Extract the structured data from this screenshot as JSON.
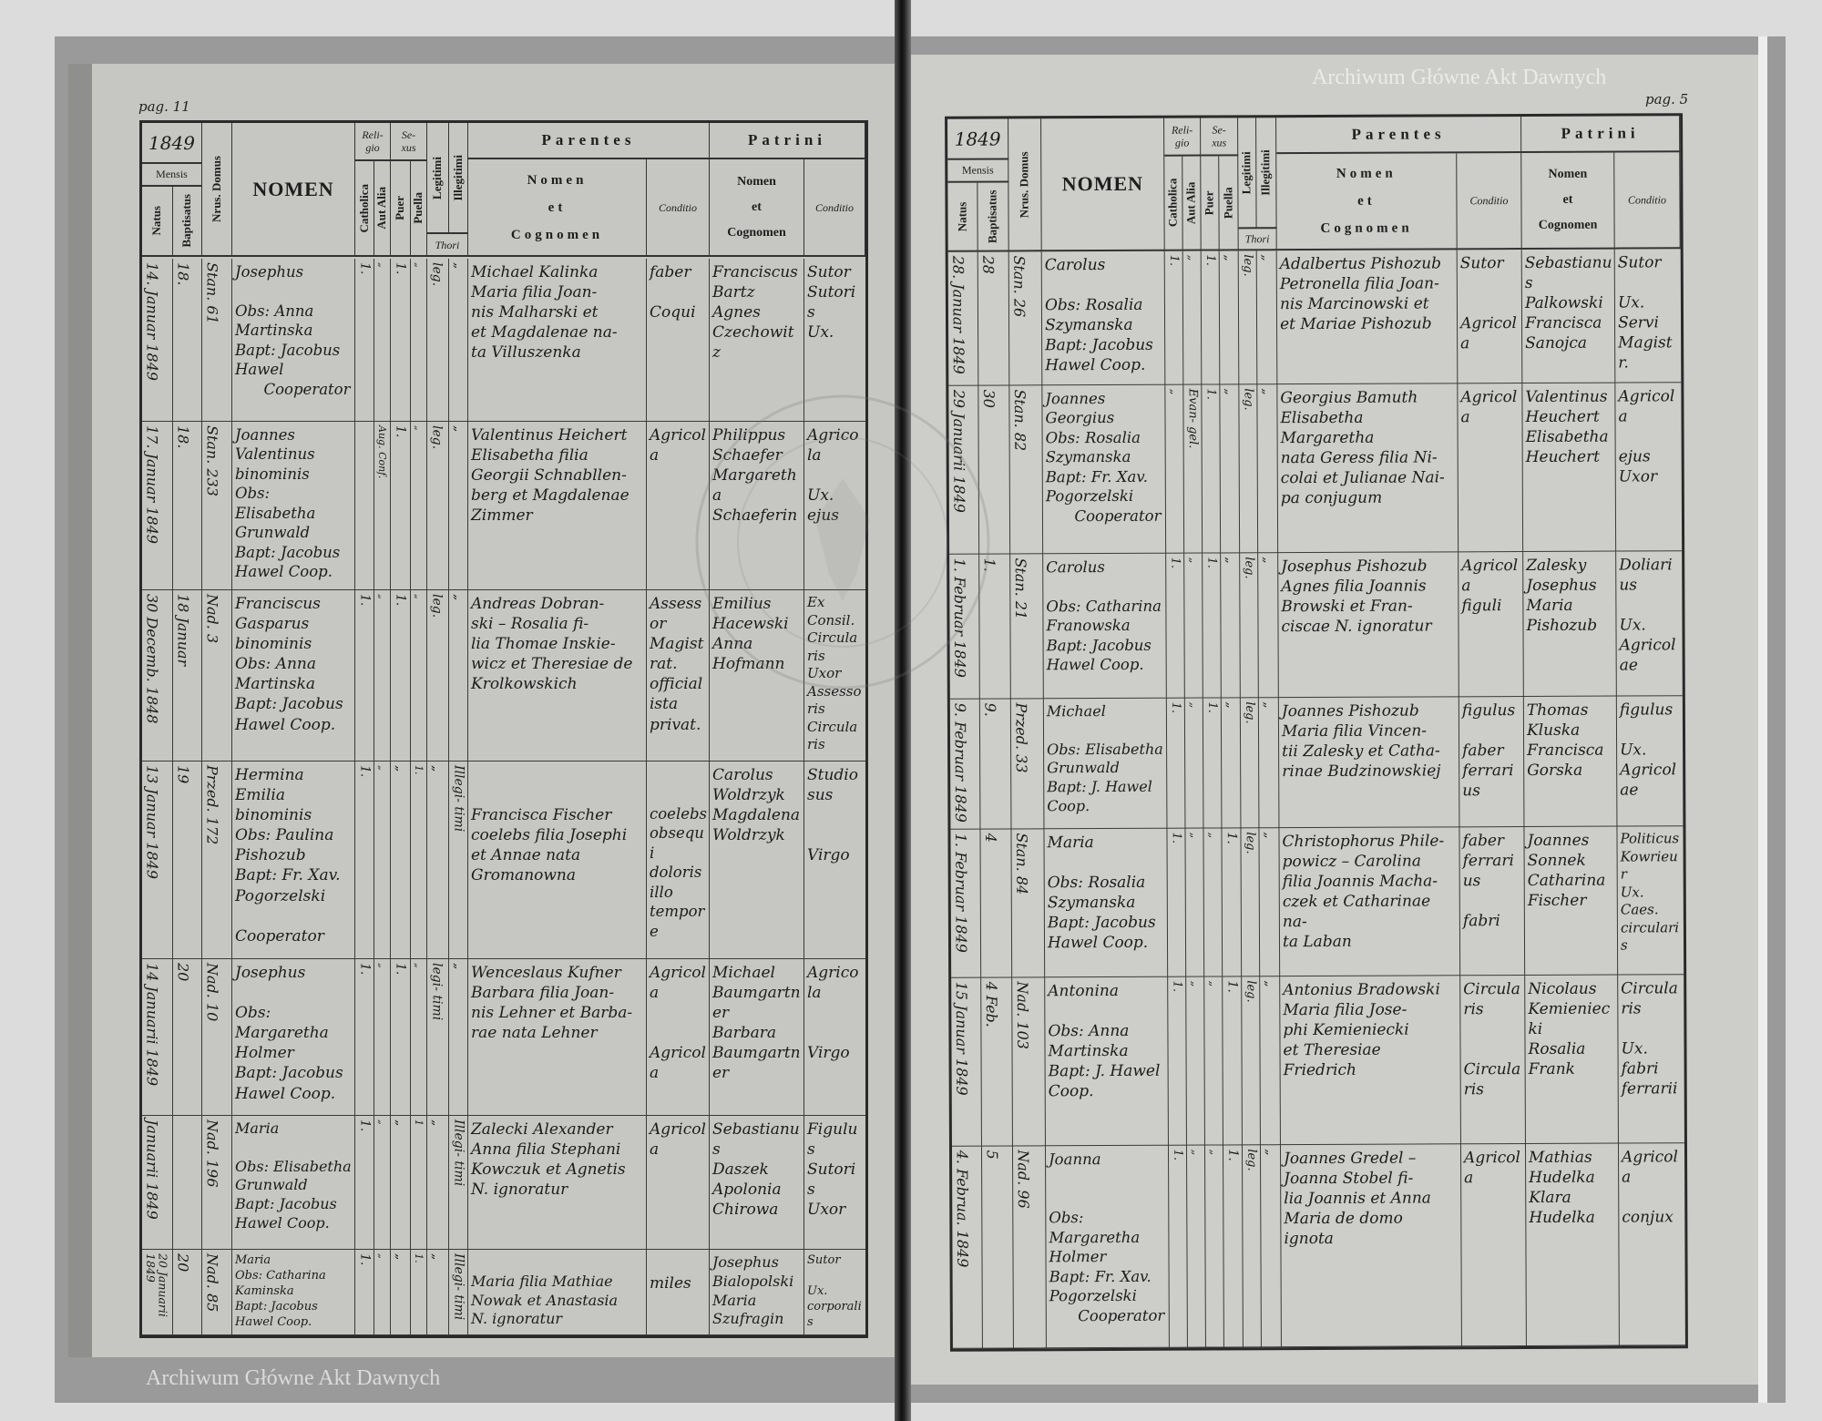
{
  "header": {
    "mensis": "Mensis",
    "natus": "Natus",
    "baptisatus": "Baptisatus",
    "domus": "Nrus. Domus",
    "nomen": "NOMEN",
    "religio": "Reli-\ngio",
    "catholica": "Catholica",
    "aut_alia": "Aut Alia",
    "sexus": "Se-\nxus",
    "puer": "Puer",
    "puella": "Puella",
    "legitimi": "Legitimi",
    "illegitimi": "Illegitimi",
    "thori": "Thori",
    "parentes": "Parentes",
    "parentes_nomen": "Nomen\net\nCognomen",
    "conditio": "Conditio",
    "patrini": "Patrini",
    "patrini_nomen": "Nomen\net\nCognomen"
  },
  "watermark": "Archiwum Główne Akt Dawnych",
  "seal": "ARCHIWUM GŁÓWNE\nAKT DAWNYCH",
  "pages": [
    {
      "page_label": "pag. 11",
      "year": "1849",
      "entries": [
        {
          "natus": "14.\nJanuar\n1849",
          "baptisatus": "18.",
          "domus": "Stan.\n61",
          "nomen": "Josephus\n\nObs: Anna Martinska\nBapt: Jacobus Hawel\n      Cooperator",
          "catholica": "1.",
          "aut_alia": "„",
          "puer": "1.",
          "puella": "„",
          "legitimi": "leg.",
          "illegitimi": "„",
          "parentes_nomen": "Michael Kalinka\nMaria filia Joan-\nnis Malharski et\net Magdalenae na-\nta Villuszenka",
          "parentes_conditio": "faber\n\nCoqui",
          "patrini_nomen": "Franciscus\nBartz\nAgnes\nCzechowitz",
          "patrini_conditio": "Sutor\nSutoris\nUx."
        },
        {
          "natus": "17.\nJanuar\n1849",
          "baptisatus": "18.",
          "domus": "Stan.\n233",
          "nomen": "Joannes\nValentinus\nbinominis\nObs: Elisabetha Grunwald\nBapt: Jacobus Hawel Coop.",
          "catholica": "",
          "aut_alia": "Aug.\nConf.",
          "puer": "1.",
          "puella": "„",
          "legitimi": "leg.",
          "illegitimi": "„",
          "parentes_nomen": "Valentinus Heichert\nElisabetha filia\nGeorgii Schnabllen-\nberg et Magdalenae\nZimmer",
          "parentes_conditio": "Agricola",
          "patrini_nomen": "Philippus\nSchaefer\nMargaretha\nSchaeferin",
          "patrini_conditio": "Agricola\n\nUx.\nejus"
        },
        {
          "natus": "30\nDecemb.\n1848",
          "baptisatus": "18\nJanuar",
          "domus": "Nad.\n3",
          "nomen": "Franciscus\nGasparus\nbinominis\nObs: Anna Martinska\nBapt: Jacobus Hawel Coop.",
          "catholica": "1.",
          "aut_alia": "„",
          "puer": "1.",
          "puella": "„",
          "legitimi": "leg.",
          "illegitimi": "„",
          "parentes_nomen": "Andreas Dobran-\nski – Rosalia fi-\nlia Thomae Inskie-\nwicz et Theresiae de\nKrolkowskich",
          "parentes_conditio": "Assessor\nMagistrat.\nofficialista\nprivat.",
          "patrini_nomen": "Emilius\nHacewski\nAnna\nHofmann",
          "patrini_conditio": "Ex Consil.\nCircularis\nUxor\nAssessoris\nCircularis"
        },
        {
          "natus": "13\nJanuar\n1849",
          "baptisatus": "19",
          "domus": "Przed.\n172",
          "nomen": "Hermina\nEmilia\nbinominis\nObs: Paulina Pishozub\nBapt: Fr. Xav. Pogorzelski\n      Cooperator",
          "catholica": "1.",
          "aut_alia": "„",
          "puer": "„",
          "puella": "1.",
          "legitimi": "„",
          "illegitimi": "Illegi-\ntimi",
          "parentes_nomen": "\n\nFrancisca Fischer\ncoelebs filia Josephi\net Annae nata\nGromanowna",
          "parentes_conditio": "\n\ncoelebs\nobsequi\ndoloris\nillo tempore",
          "patrini_nomen": "Carolus\nWoldrzyk\nMagdalena\nWoldrzyk",
          "patrini_conditio": "Studiosus\n\n\nVirgo"
        },
        {
          "natus": "14\nJanuarii\n1849",
          "baptisatus": "20",
          "domus": "Nad.\n10",
          "nomen": "Josephus\n\nObs: Margaretha Holmer\nBapt: Jacobus Hawel Coop.",
          "catholica": "1.",
          "aut_alia": "„",
          "puer": "1.",
          "puella": "„",
          "legitimi": "legi-\ntimi",
          "illegitimi": "„",
          "parentes_nomen": "Wenceslaus Kufner\nBarbara filia Joan-\nnis Lehner et Barba-\nrae nata Lehner",
          "parentes_conditio": "Agricola\n\n\nAgricola",
          "patrini_nomen": "Michael\nBaumgartner\nBarbara\nBaumgartner",
          "patrini_conditio": "Agricola\n\n\nVirgo"
        },
        {
          "natus": "\nJanuarii\n1849",
          "baptisatus": "",
          "domus": "Nad.\n196",
          "nomen": "Maria\n\nObs: Elisabetha Grunwald\nBapt: Jacobus Hawel Coop.",
          "catholica": "1.",
          "aut_alia": "„",
          "puer": "„",
          "puella": "1",
          "legitimi": "„",
          "illegitimi": "Illegi-\ntimi",
          "parentes_nomen": "Zalecki Alexander\nAnna filia Stephani\nKowczuk et Agnetis\nN. ignoratur",
          "parentes_conditio": "Agricola",
          "patrini_nomen": "Sebastianus\nDaszek\nApolonia\nChirowa",
          "patrini_conditio": "Figulus\nSutoris\nUxor"
        },
        {
          "natus": "20\nJanuarii\n1849",
          "baptisatus": "20",
          "domus": "Nad.\n85",
          "nomen": "Maria\nObs: Catharina Kaminska\nBapt: Jacobus Hawel Coop.",
          "catholica": "1.",
          "aut_alia": "„",
          "puer": "„",
          "puella": "1.",
          "legitimi": "„",
          "illegitimi": "Illegi-\ntimi",
          "parentes_nomen": "\nMaria filia Mathiae\nNowak et Anastasia\nN. ignoratur",
          "parentes_conditio": "\nmiles",
          "patrini_nomen": "Josephus\nBialopolski\nMaria\nSzufragin",
          "patrini_conditio": "Sutor\n\nUx.\ncorporalis"
        }
      ]
    },
    {
      "page_label": "pag. 5",
      "year": "1849",
      "entries": [
        {
          "natus": "28.\nJanuar\n1849",
          "baptisatus": "28",
          "domus": "Stan.\n26",
          "nomen": "Carolus\n\nObs: Rosalia Szymanska\nBapt: Jacobus Hawel Coop.",
          "catholica": "1.",
          "aut_alia": "„",
          "puer": "1.",
          "puella": "„",
          "legitimi": "leg.",
          "illegitimi": "„",
          "parentes_nomen": "Adalbertus Pishozub\nPetronella filia Joan-\nnis Marcinowski et\net Mariae Pishozub",
          "parentes_conditio": "Sutor\n\n\nAgricola",
          "patrini_nomen": "Sebastianus\nPalkowski\nFrancisca\nSanojca",
          "patrini_conditio": "Sutor\n\nUx.\nServi Magistr."
        },
        {
          "natus": "29\nJanuarii\n1849",
          "baptisatus": "30",
          "domus": "Stan.\n82",
          "nomen": "Joannes\nGeorgius\nObs: Rosalia Szymanska\nBapt: Fr. Xav. Pogorzelski\n      Cooperator",
          "catholica": "„",
          "aut_alia": "Evan-\ngel.",
          "puer": "1.",
          "puella": "„",
          "legitimi": "leg.",
          "illegitimi": "„",
          "parentes_nomen": "Georgius Bamuth\nElisabetha Margaretha\nnata Geress filia Ni-\ncolai et Julianae Nai-\npa conjugum",
          "parentes_conditio": "Agricola",
          "patrini_nomen": "Valentinus\nHeuchert\nElisabetha\nHeuchert",
          "patrini_conditio": "Agricola\n\nejus\nUxor"
        },
        {
          "natus": "1.\nFebruar\n1849",
          "baptisatus": "1.",
          "domus": "Stan.\n21",
          "nomen": "Carolus\n\nObs: Catharina Franowska\nBapt: Jacobus Hawel Coop.",
          "catholica": "1.",
          "aut_alia": "„",
          "puer": "1.",
          "puella": "„",
          "legitimi": "leg.",
          "illegitimi": "„",
          "parentes_nomen": "Josephus Pishozub\nAgnes filia Joannis\nBrowski et Fran-\nciscae N. ignoratur",
          "parentes_conditio": "Agricola\nfiguli",
          "patrini_nomen": "Zalesky\nJosephus\nMaria\nPishozub",
          "patrini_conditio": "Doliarius\n\nUx.\nAgricolae"
        },
        {
          "natus": "9.\nFebruar\n1849",
          "baptisatus": "9.",
          "domus": "Przed.\n33",
          "nomen": "Michael\n\nObs: Elisabetha Grunwald\nBapt: J. Hawel Coop.",
          "catholica": "1.",
          "aut_alia": "„",
          "puer": "1.",
          "puella": "„",
          "legitimi": "leg.",
          "illegitimi": "„",
          "parentes_nomen": "Joannes Pishozub\nMaria filia Vincen-\ntii Zalesky et Catha-\nrinae Budzinowskiej",
          "parentes_conditio": "figulus\n\nfaber\nferrarius",
          "patrini_nomen": "Thomas\nKluska\nFrancisca\nGorska",
          "patrini_conditio": "figulus\n\nUx.\nAgricolae"
        },
        {
          "natus": "1.\nFebruar\n1849",
          "baptisatus": "4",
          "domus": "Stan.\n84",
          "nomen": "Maria\n\nObs: Rosalia Szymanska\nBapt: Jacobus Hawel Coop.",
          "catholica": "1.",
          "aut_alia": "„",
          "puer": "„",
          "puella": "1.",
          "legitimi": "leg.",
          "illegitimi": "„",
          "parentes_nomen": "Christophorus Phile-\npowicz – Carolina\nfilia Joannis Macha-\nczek et Catharinae na-\nta Laban",
          "parentes_conditio": "faber\nferrarius\n\nfabri",
          "patrini_nomen": "Joannes\nSonnek\nCatharina\nFischer",
          "patrini_conditio": "Politicus\nKowrieur\nUx. Caes.\ncircularis"
        },
        {
          "natus": "15\nJanuar\n1849",
          "baptisatus": "4\nFeb.",
          "domus": "Nad.\n103",
          "nomen": "Antonina\n\nObs: Anna Martinska\nBapt: J. Hawel Coop.",
          "catholica": "1.",
          "aut_alia": "„",
          "puer": "„",
          "puella": "1.",
          "legitimi": "leg.",
          "illegitimi": "„",
          "parentes_nomen": "Antonius Bradowski\nMaria filia Jose-\nphi Kemieniecki\net Theresiae Friedrich",
          "parentes_conditio": "Circularis\n\n\nCircularis",
          "patrini_nomen": "Nicolaus\nKemieniecki\nRosalia\nFrank",
          "patrini_conditio": "Circularis\n\nUx. fabri\nferrarii"
        },
        {
          "natus": "4.\nFebrua.\n1849",
          "baptisatus": "5",
          "domus": "Nad.\n96",
          "nomen": "Joanna\n\n\nObs: Margaretha Holmer\nBapt: Fr. Xav. Pogorzelski\n      Cooperator",
          "catholica": "1.",
          "aut_alia": "„",
          "puer": "„",
          "puella": "1.",
          "legitimi": "leg.",
          "illegitimi": "„",
          "parentes_nomen": "Joannes Gredel –\nJoanna Stobel fi-\nlia Joannis et Anna\nMaria de domo\nignota",
          "parentes_conditio": "Agricola",
          "patrini_nomen": "Mathias\nHudelka\nKlara\nHudelka",
          "patrini_conditio": "Agricola\n\nconjux"
        }
      ]
    }
  ]
}
